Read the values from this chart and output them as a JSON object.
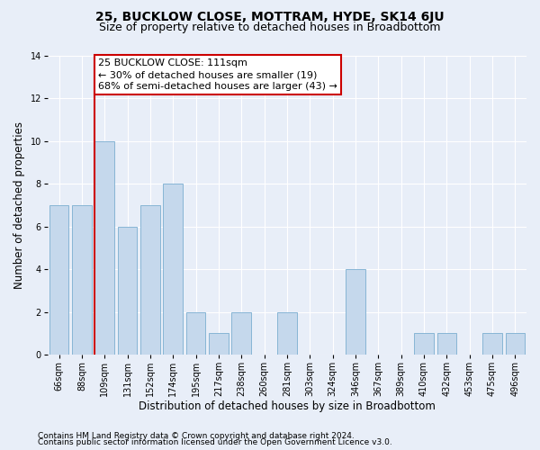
{
  "title1": "25, BUCKLOW CLOSE, MOTTRAM, HYDE, SK14 6JU",
  "title2": "Size of property relative to detached houses in Broadbottom",
  "xlabel": "Distribution of detached houses by size in Broadbottom",
  "ylabel": "Number of detached properties",
  "categories": [
    "66sqm",
    "88sqm",
    "109sqm",
    "131sqm",
    "152sqm",
    "174sqm",
    "195sqm",
    "217sqm",
    "238sqm",
    "260sqm",
    "281sqm",
    "303sqm",
    "324sqm",
    "346sqm",
    "367sqm",
    "389sqm",
    "410sqm",
    "432sqm",
    "453sqm",
    "475sqm",
    "496sqm"
  ],
  "values": [
    7,
    7,
    10,
    6,
    7,
    8,
    2,
    1,
    2,
    0,
    2,
    0,
    0,
    4,
    0,
    0,
    1,
    1,
    0,
    1,
    1
  ],
  "bar_color": "#c5d8ec",
  "bar_edge_color": "#7aaed0",
  "redline_index": 2,
  "annotation_line1": "25 BUCKLOW CLOSE: 111sqm",
  "annotation_line2": "← 30% of detached houses are smaller (19)",
  "annotation_line3": "68% of semi-detached houses are larger (43) →",
  "annotation_box_color": "#ffffff",
  "annotation_box_edge": "#cc0000",
  "ylim": [
    0,
    14
  ],
  "yticks": [
    0,
    2,
    4,
    6,
    8,
    10,
    12,
    14
  ],
  "footnote1": "Contains HM Land Registry data © Crown copyright and database right 2024.",
  "footnote2": "Contains public sector information licensed under the Open Government Licence v3.0.",
  "bg_color": "#e8eef8",
  "plot_bg_color": "#e8eef8",
  "grid_color": "#ffffff",
  "title1_fontsize": 10,
  "title2_fontsize": 9,
  "axis_label_fontsize": 8.5,
  "tick_fontsize": 7,
  "annotation_fontsize": 8,
  "footnote_fontsize": 6.5
}
